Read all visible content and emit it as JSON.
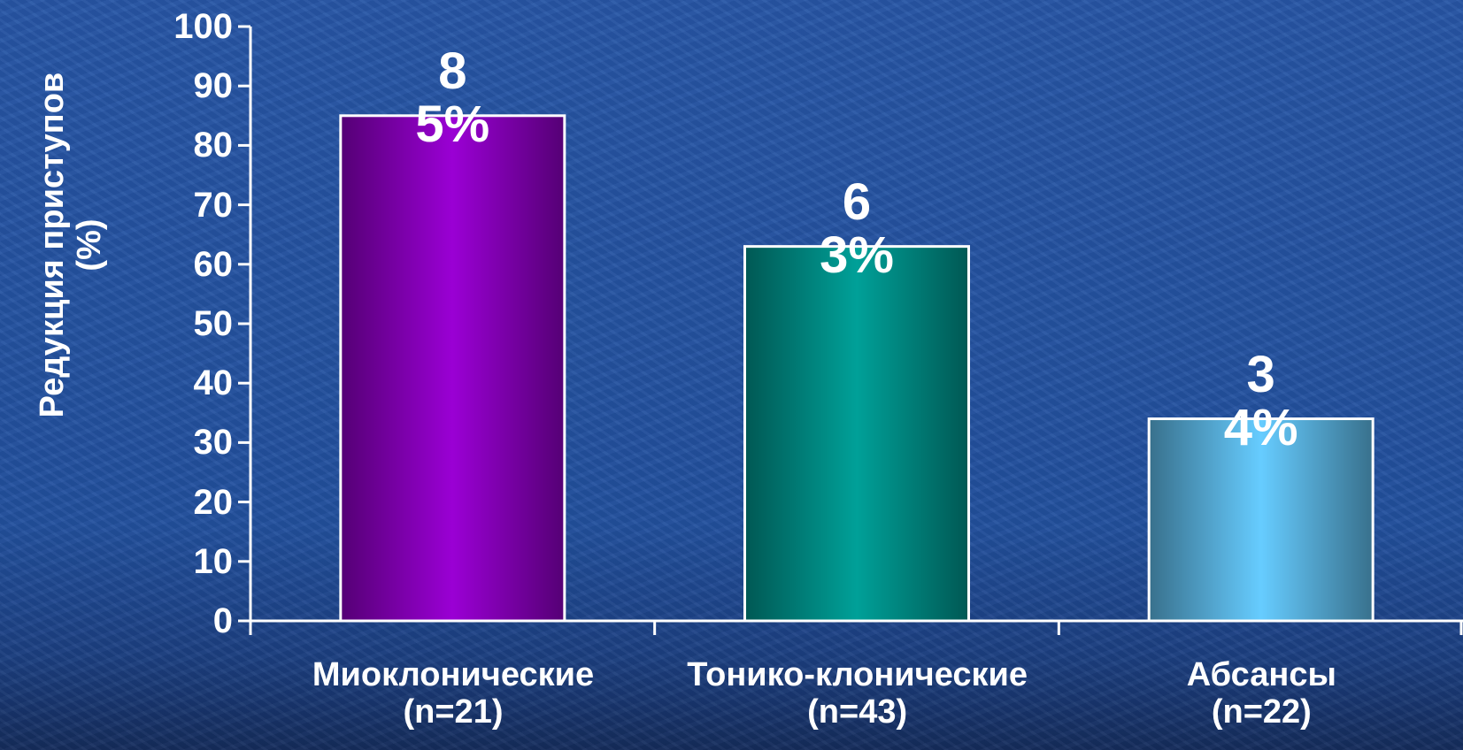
{
  "chart_data": {
    "type": "bar",
    "y_axis_label": "Редукция приступов\n(%)",
    "categories": [
      "Миоклонические\n(n=21)",
      "Тонико-клонические\n(n=43)",
      "Абсансы\n(n=22)"
    ],
    "values": [
      85,
      63,
      34
    ],
    "value_labels": [
      "85%",
      "63%",
      "34%"
    ],
    "colors": [
      "#9a00d4",
      "#00a098",
      "#66ccff"
    ],
    "ylim": [
      0,
      100
    ],
    "yticks": [
      0,
      10,
      20,
      30,
      40,
      50,
      60,
      70,
      80,
      90,
      100
    ]
  }
}
